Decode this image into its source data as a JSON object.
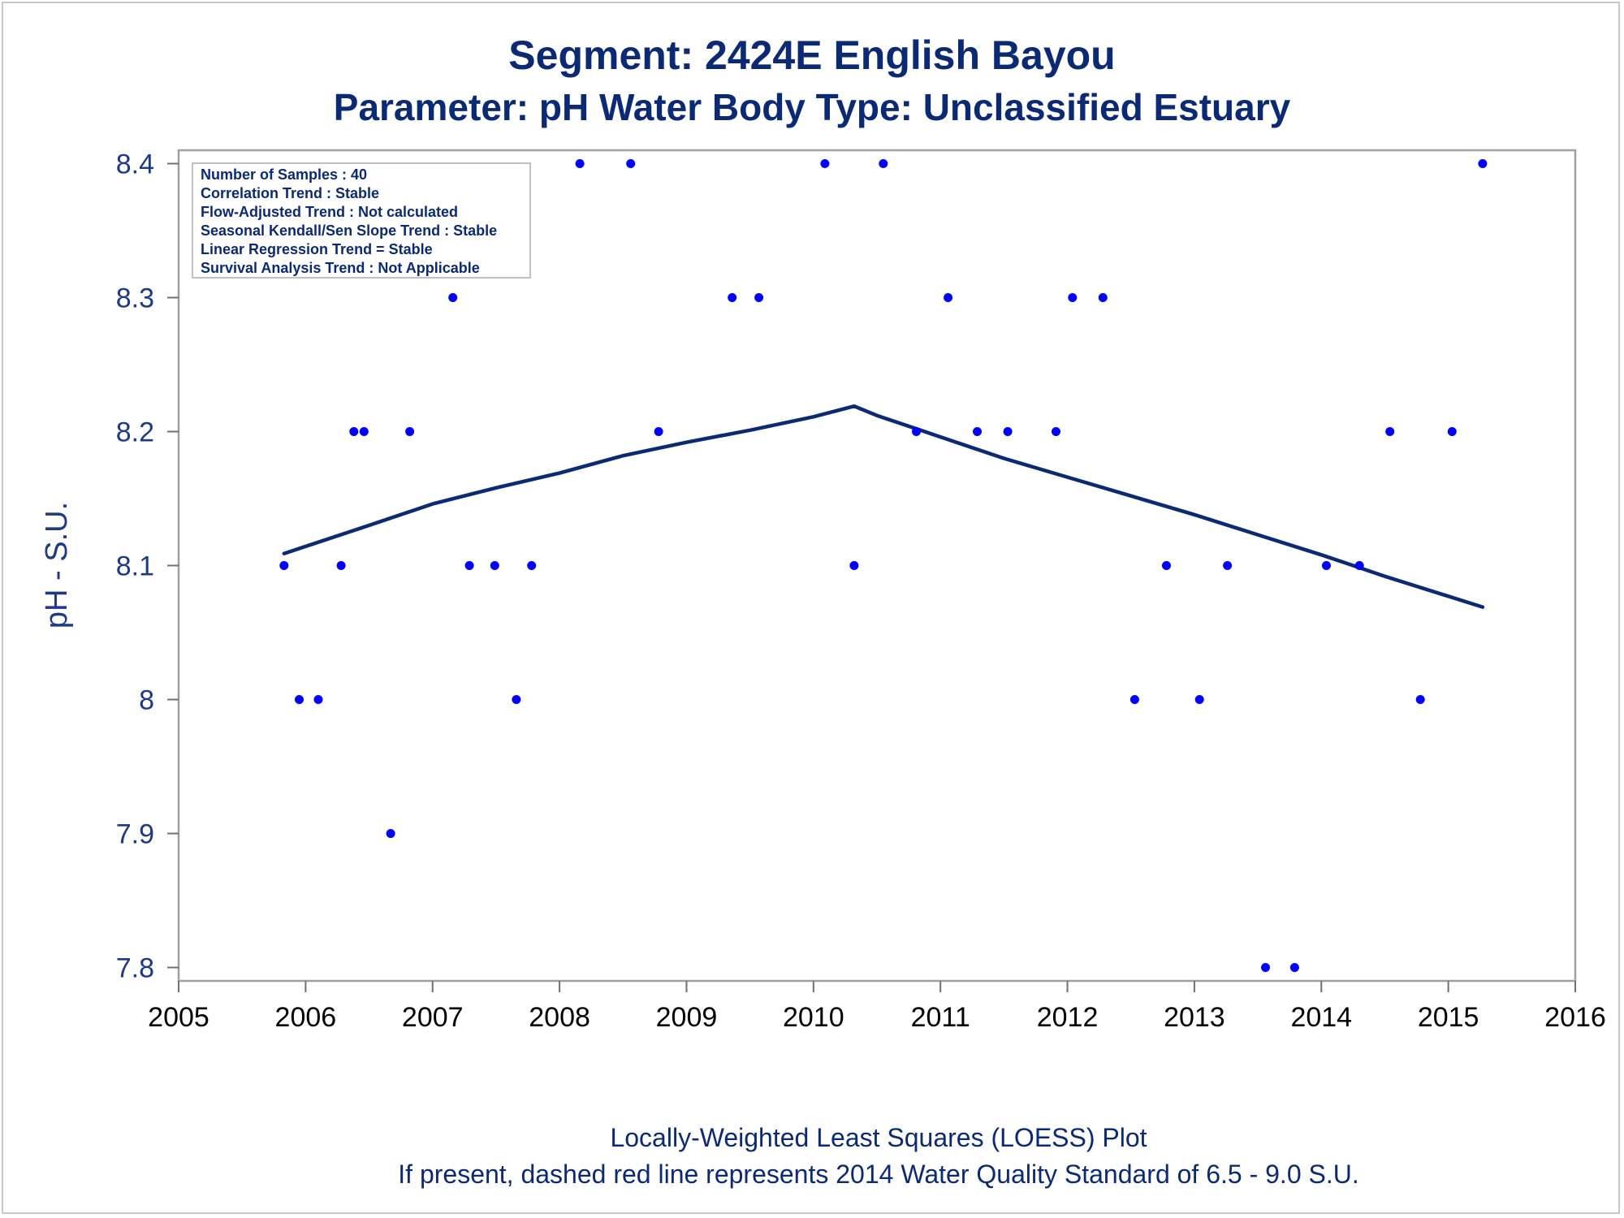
{
  "chart_data": {
    "type": "scatter",
    "title": "Segment: 2424E  English Bayou",
    "subtitle": "Parameter: pH   Water Body Type: Unclassified Estuary",
    "xlabel": "",
    "ylabel": "pH - S.U.",
    "xlim": [
      2005,
      2016
    ],
    "ylim": [
      7.79,
      8.41
    ],
    "xticks": [
      "2005",
      "2006",
      "2007",
      "2008",
      "2009",
      "2010",
      "2011",
      "2012",
      "2013",
      "2014",
      "2015",
      "2016"
    ],
    "yticks": [
      "7.8",
      "7.9",
      "8",
      "8.1",
      "8.2",
      "8.3",
      "8.4"
    ],
    "grid": false,
    "series": [
      {
        "type": "scatter",
        "color": "#0000ff",
        "points": [
          [
            2005.83,
            8.1
          ],
          [
            2005.95,
            8.0
          ],
          [
            2006.1,
            8.0
          ],
          [
            2006.28,
            8.1
          ],
          [
            2006.38,
            8.2
          ],
          [
            2006.46,
            8.2
          ],
          [
            2006.67,
            7.9
          ],
          [
            2006.82,
            8.2
          ],
          [
            2007.16,
            8.3
          ],
          [
            2007.29,
            8.1
          ],
          [
            2007.49,
            8.1
          ],
          [
            2007.66,
            8.0
          ],
          [
            2007.78,
            8.1
          ],
          [
            2008.16,
            8.4
          ],
          [
            2008.56,
            8.4
          ],
          [
            2008.78,
            8.2
          ],
          [
            2009.36,
            8.3
          ],
          [
            2009.57,
            8.3
          ],
          [
            2010.09,
            8.4
          ],
          [
            2010.32,
            8.1
          ],
          [
            2010.55,
            8.4
          ],
          [
            2010.81,
            8.2
          ],
          [
            2011.06,
            8.3
          ],
          [
            2011.29,
            8.2
          ],
          [
            2011.53,
            8.2
          ],
          [
            2011.91,
            8.2
          ],
          [
            2012.04,
            8.3
          ],
          [
            2012.28,
            8.3
          ],
          [
            2012.53,
            8.0
          ],
          [
            2012.78,
            8.1
          ],
          [
            2013.04,
            8.0
          ],
          [
            2013.26,
            8.1
          ],
          [
            2013.56,
            7.8
          ],
          [
            2013.79,
            7.8
          ],
          [
            2014.04,
            8.1
          ],
          [
            2014.3,
            8.1
          ],
          [
            2014.54,
            8.2
          ],
          [
            2014.78,
            8.0
          ],
          [
            2015.03,
            8.2
          ],
          [
            2015.27,
            8.4
          ]
        ]
      },
      {
        "type": "line",
        "color": "#0c2a74",
        "points": [
          [
            2005.83,
            8.109
          ],
          [
            2006.5,
            8.13
          ],
          [
            2007.0,
            8.146
          ],
          [
            2007.5,
            8.158
          ],
          [
            2008.0,
            8.169
          ],
          [
            2008.5,
            8.182
          ],
          [
            2009.0,
            8.192
          ],
          [
            2009.5,
            8.201
          ],
          [
            2010.0,
            8.211
          ],
          [
            2010.32,
            8.219
          ],
          [
            2010.5,
            8.212
          ],
          [
            2011.0,
            8.196
          ],
          [
            2011.5,
            8.18
          ],
          [
            2012.0,
            8.166
          ],
          [
            2012.5,
            8.152
          ],
          [
            2013.0,
            8.138
          ],
          [
            2013.5,
            8.123
          ],
          [
            2014.0,
            8.108
          ],
          [
            2014.5,
            8.092
          ],
          [
            2015.27,
            8.069
          ]
        ]
      }
    ],
    "annotations": [
      "Number of Samples : 40",
      "Correlation Trend : Stable",
      "Flow-Adjusted Trend : Not calculated",
      "Seasonal Kendall/Sen Slope Trend : Stable",
      "Linear Regression Trend = Stable",
      "Survival Analysis Trend : Not Applicable"
    ],
    "footnotes": [
      "Locally-Weighted Least Squares (LOESS) Plot",
      "If present, dashed red line represents 2014 Water Quality Standard of 6.5 - 9.0 S.U."
    ]
  }
}
